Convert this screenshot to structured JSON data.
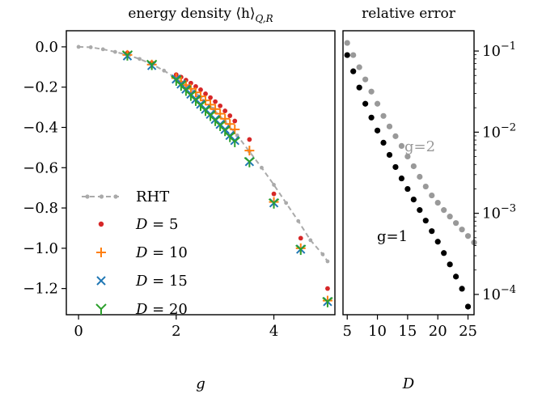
{
  "chart_data": [
    {
      "type": "scatter",
      "title": "energy density ⟨h⟩_Q,R",
      "title_main": "energy density ⟨h⟩",
      "title_sub": "Q,R",
      "xlabel": "g",
      "ylabel": "",
      "xlim": [
        -0.25,
        5.25
      ],
      "ylim": [
        -1.33,
        0.08
      ],
      "xticks": [
        0,
        2,
        4
      ],
      "xtick_labels": [
        "0",
        "2",
        "4"
      ],
      "yticks": [
        0.0,
        -0.2,
        -0.4,
        -0.6,
        -0.8,
        -1.0,
        -1.2
      ],
      "ytick_labels": [
        "0.0",
        "−0.2",
        "−0.4",
        "−0.6",
        "−0.8",
        "−1.0",
        "−1.2"
      ],
      "legend_position": "lower-left",
      "series": [
        {
          "name": "RHT",
          "style": "dashed-line-dots",
          "color": "#aaaaaa",
          "x": [
            0,
            0.25,
            0.5,
            0.75,
            1.0,
            1.25,
            1.5,
            1.75,
            2.0,
            2.25,
            2.5,
            2.75,
            3.0,
            3.25,
            3.5,
            3.75,
            4.0,
            4.25,
            4.5,
            4.75,
            5.0,
            5.1
          ],
          "y": [
            0,
            -0.002,
            -0.012,
            -0.025,
            -0.04,
            -0.06,
            -0.086,
            -0.118,
            -0.156,
            -0.2,
            -0.25,
            -0.307,
            -0.37,
            -0.44,
            -0.52,
            -0.6,
            -0.685,
            -0.775,
            -0.865,
            -0.96,
            -1.03,
            -1.065
          ]
        },
        {
          "name": "D = 5",
          "label_var": "D",
          "label_val": " = 5",
          "marker": "dot",
          "color": "#d62728",
          "x": [
            1.0,
            1.5,
            2.0,
            2.1,
            2.2,
            2.3,
            2.4,
            2.5,
            2.6,
            2.7,
            2.8,
            2.9,
            3.0,
            3.1,
            3.2,
            3.5,
            4.0,
            4.55,
            5.1
          ],
          "y": [
            -0.03,
            -0.08,
            -0.138,
            -0.15,
            -0.165,
            -0.18,
            -0.197,
            -0.213,
            -0.233,
            -0.252,
            -0.272,
            -0.293,
            -0.318,
            -0.342,
            -0.368,
            -0.46,
            -0.73,
            -0.95,
            -1.2
          ]
        },
        {
          "name": "D = 10",
          "label_var": "D",
          "label_val": " = 10",
          "marker": "plus",
          "color": "#ff7f0e",
          "x": [
            1.0,
            1.5,
            2.0,
            2.1,
            2.2,
            2.3,
            2.4,
            2.5,
            2.6,
            2.7,
            2.8,
            2.9,
            3.0,
            3.1,
            3.2,
            3.5,
            4.0,
            4.55,
            5.1
          ],
          "y": [
            -0.04,
            -0.088,
            -0.155,
            -0.172,
            -0.19,
            -0.208,
            -0.226,
            -0.246,
            -0.266,
            -0.287,
            -0.309,
            -0.332,
            -0.357,
            -0.383,
            -0.41,
            -0.515,
            -0.77,
            -1.0,
            -1.26
          ]
        },
        {
          "name": "D = 15",
          "label_var": "D",
          "label_val": " = 15",
          "marker": "x",
          "color": "#1f77b4",
          "x": [
            1.0,
            1.5,
            2.0,
            2.1,
            2.2,
            2.3,
            2.4,
            2.5,
            2.6,
            2.7,
            2.8,
            2.9,
            3.0,
            3.1,
            3.2,
            3.5,
            4.0,
            4.55,
            5.1
          ],
          "y": [
            -0.045,
            -0.093,
            -0.16,
            -0.185,
            -0.21,
            -0.235,
            -0.26,
            -0.285,
            -0.31,
            -0.335,
            -0.36,
            -0.385,
            -0.41,
            -0.44,
            -0.465,
            -0.57,
            -0.775,
            -1.005,
            -1.265
          ]
        },
        {
          "name": "D = 20",
          "label_var": "D",
          "label_val": " = 20",
          "marker": "tri",
          "color": "#2ca02c",
          "x": [
            1.0,
            1.5,
            2.0,
            2.1,
            2.2,
            2.3,
            2.4,
            2.5,
            2.6,
            2.7,
            2.8,
            2.9,
            3.0,
            3.1,
            3.2,
            3.5,
            4.0,
            4.55,
            5.1
          ],
          "y": [
            -0.04,
            -0.087,
            -0.165,
            -0.19,
            -0.215,
            -0.24,
            -0.265,
            -0.29,
            -0.315,
            -0.34,
            -0.365,
            -0.39,
            -0.415,
            -0.445,
            -0.47,
            -0.57,
            -0.775,
            -1.005,
            -1.265
          ]
        }
      ]
    },
    {
      "type": "scatter",
      "title": "relative error",
      "xlabel": "D",
      "ylabel": "",
      "xlim": [
        4.3,
        26.0
      ],
      "ylim_log10": [
        -4.25,
        -0.75
      ],
      "y_scale": "log",
      "y_axis_side": "right",
      "xticks": [
        5,
        10,
        15,
        20,
        25
      ],
      "xtick_labels": [
        "5",
        "10",
        "15",
        "20",
        "25"
      ],
      "yticks_exp": [
        -1,
        -2,
        -3,
        -4
      ],
      "ytick_base": "10",
      "ytick_exp_labels": [
        "−1",
        "−2",
        "−3",
        "−4"
      ],
      "annotations": [
        {
          "text": "g=2",
          "color": "#999999"
        },
        {
          "text": "g=1",
          "color": "#000000"
        }
      ],
      "series": [
        {
          "name": "g=2",
          "marker": "dot",
          "color": "#999999",
          "x": [
            5,
            6,
            7,
            8,
            9,
            10,
            11,
            12,
            13,
            14,
            15,
            16,
            17,
            18,
            19,
            20,
            21,
            22,
            23,
            24,
            25,
            26
          ],
          "y_log10": [
            -0.9,
            -1.05,
            -1.2,
            -1.35,
            -1.5,
            -1.65,
            -1.8,
            -1.93,
            -2.05,
            -2.17,
            -2.3,
            -2.42,
            -2.55,
            -2.67,
            -2.78,
            -2.87,
            -2.96,
            -3.04,
            -3.12,
            -3.2,
            -3.28,
            -3.36
          ]
        },
        {
          "name": "g=1",
          "marker": "dot",
          "color": "#000000",
          "x": [
            5,
            6,
            7,
            8,
            9,
            10,
            11,
            12,
            13,
            14,
            15,
            16,
            17,
            18,
            19,
            20,
            21,
            22,
            23,
            24,
            25
          ],
          "y_log10": [
            -1.05,
            -1.25,
            -1.45,
            -1.65,
            -1.82,
            -1.98,
            -2.13,
            -2.28,
            -2.43,
            -2.57,
            -2.7,
            -2.83,
            -2.96,
            -3.09,
            -3.22,
            -3.35,
            -3.49,
            -3.63,
            -3.78,
            -3.93,
            -4.15
          ]
        }
      ]
    }
  ]
}
